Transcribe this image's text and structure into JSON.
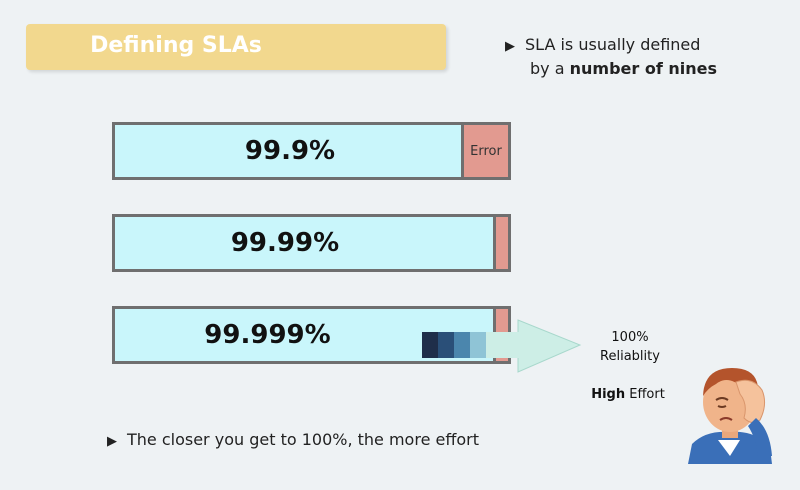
{
  "slide": {
    "title": "Defining SLAs",
    "bullet_top_line1": "SLA is usually defined",
    "bullet_top_line2_pre": "by a ",
    "bullet_top_line2_bold": "number of nines",
    "bars": [
      {
        "label": "99.9%",
        "error_label": "Error"
      },
      {
        "label": "99.99%"
      },
      {
        "label": "99.999%"
      }
    ],
    "target_line1": "100%",
    "target_line2": "Reliablity",
    "effort_bold": "High",
    "effort_rest": " Effort",
    "bullet_bottom": "The closer you get to 100%, the more effort",
    "bullet_marker": "▶"
  },
  "colors": {
    "title_bg": "#f2d88e",
    "bar_fill": "#c9f6fb",
    "error_fill": "#e29a90",
    "bar_border": "#6f6f6f"
  }
}
